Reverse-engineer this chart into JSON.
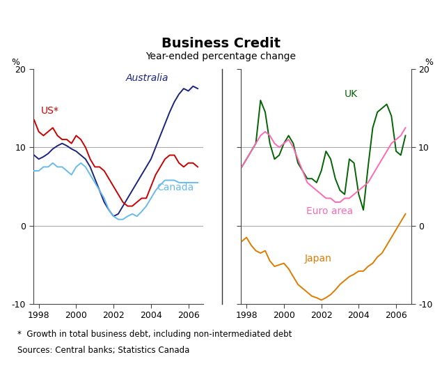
{
  "title": "Business Credit",
  "subtitle": "Year-ended percentage change",
  "footnote1": "*  Growth in total business debt, including non-intermediated debt",
  "footnote2": "Sources: Central banks; Statistics Canada",
  "ylim": [
    -10,
    20
  ],
  "yticks": [
    -10,
    0,
    10,
    20
  ],
  "left_xlim": [
    1997.7,
    2006.8
  ],
  "right_xlim": [
    1997.7,
    2006.8
  ],
  "xticks": [
    1998,
    2000,
    2002,
    2004,
    2006
  ],
  "xtick_labels": [
    "1998",
    "2000",
    "2002",
    "2004",
    "2006"
  ],
  "australia_color": "#1a237e",
  "us_color": "#cc0000",
  "canada_color": "#66bbee",
  "uk_color": "#006400",
  "euro_color": "#ff69b4",
  "japan_color": "#e07b00",
  "grid_color": "#aaaaaa",
  "background_color": "#ffffff",
  "australia": {
    "x": [
      1997.75,
      1998.0,
      1998.25,
      1998.5,
      1998.75,
      1999.0,
      1999.25,
      1999.5,
      1999.75,
      2000.0,
      2000.25,
      2000.5,
      2000.75,
      2001.0,
      2001.25,
      2001.5,
      2001.75,
      2002.0,
      2002.25,
      2002.5,
      2002.75,
      2003.0,
      2003.25,
      2003.5,
      2003.75,
      2004.0,
      2004.25,
      2004.5,
      2004.75,
      2005.0,
      2005.25,
      2005.5,
      2005.75,
      2006.0,
      2006.25,
      2006.5
    ],
    "y": [
      9.0,
      8.5,
      8.8,
      9.2,
      9.8,
      10.2,
      10.5,
      10.2,
      9.8,
      9.5,
      9.0,
      8.5,
      7.5,
      6.0,
      4.5,
      3.0,
      2.0,
      1.2,
      1.5,
      2.5,
      3.5,
      4.5,
      5.5,
      6.5,
      7.5,
      8.5,
      10.0,
      11.5,
      13.0,
      14.5,
      15.8,
      16.8,
      17.5,
      17.2,
      17.8,
      17.5
    ]
  },
  "us": {
    "x": [
      1997.75,
      1998.0,
      1998.25,
      1998.5,
      1998.75,
      1999.0,
      1999.25,
      1999.5,
      1999.75,
      2000.0,
      2000.25,
      2000.5,
      2000.75,
      2001.0,
      2001.25,
      2001.5,
      2001.75,
      2002.0,
      2002.25,
      2002.5,
      2002.75,
      2003.0,
      2003.25,
      2003.5,
      2003.75,
      2004.0,
      2004.25,
      2004.5,
      2004.75,
      2005.0,
      2005.25,
      2005.5,
      2005.75,
      2006.0,
      2006.25,
      2006.5
    ],
    "y": [
      13.5,
      12.0,
      11.5,
      12.0,
      12.5,
      11.5,
      11.0,
      11.0,
      10.5,
      11.5,
      11.0,
      10.0,
      8.5,
      7.5,
      7.5,
      7.0,
      6.0,
      5.0,
      4.0,
      3.0,
      2.5,
      2.5,
      3.0,
      3.5,
      3.5,
      5.0,
      6.5,
      7.5,
      8.5,
      9.0,
      9.0,
      8.0,
      7.5,
      8.0,
      8.0,
      7.5
    ]
  },
  "canada": {
    "x": [
      1997.75,
      1998.0,
      1998.25,
      1998.5,
      1998.75,
      1999.0,
      1999.25,
      1999.5,
      1999.75,
      2000.0,
      2000.25,
      2000.5,
      2000.75,
      2001.0,
      2001.25,
      2001.5,
      2001.75,
      2002.0,
      2002.25,
      2002.5,
      2002.75,
      2003.0,
      2003.25,
      2003.5,
      2003.75,
      2004.0,
      2004.25,
      2004.5,
      2004.75,
      2005.0,
      2005.25,
      2005.5,
      2005.75,
      2006.0,
      2006.25,
      2006.5
    ],
    "y": [
      7.0,
      7.0,
      7.5,
      7.5,
      8.0,
      7.5,
      7.5,
      7.0,
      6.5,
      7.5,
      8.0,
      7.5,
      6.5,
      5.5,
      4.5,
      3.5,
      2.0,
      1.2,
      0.8,
      0.8,
      1.2,
      1.5,
      1.2,
      1.8,
      2.5,
      3.5,
      4.5,
      5.2,
      5.8,
      5.8,
      5.8,
      5.5,
      5.5,
      5.5,
      5.5,
      5.5
    ]
  },
  "uk": {
    "x": [
      1997.75,
      1998.0,
      1998.25,
      1998.5,
      1998.75,
      1999.0,
      1999.25,
      1999.5,
      1999.75,
      2000.0,
      2000.25,
      2000.5,
      2000.75,
      2001.0,
      2001.25,
      2001.5,
      2001.75,
      2002.0,
      2002.25,
      2002.5,
      2002.75,
      2003.0,
      2003.25,
      2003.5,
      2003.75,
      2004.0,
      2004.25,
      2004.5,
      2004.75,
      2005.0,
      2005.25,
      2005.5,
      2005.75,
      2006.0,
      2006.25,
      2006.5
    ],
    "y": [
      7.5,
      8.5,
      9.5,
      10.5,
      16.0,
      14.5,
      10.5,
      8.5,
      9.0,
      10.5,
      11.5,
      10.5,
      8.0,
      7.0,
      6.0,
      6.0,
      5.5,
      7.0,
      9.5,
      8.5,
      6.0,
      4.5,
      4.0,
      8.5,
      8.0,
      4.0,
      2.0,
      7.5,
      12.5,
      14.5,
      15.0,
      15.5,
      14.0,
      9.5,
      9.0,
      11.5
    ]
  },
  "euro": {
    "x": [
      1997.75,
      1998.0,
      1998.25,
      1998.5,
      1998.75,
      1999.0,
      1999.25,
      1999.5,
      1999.75,
      2000.0,
      2000.25,
      2000.5,
      2000.75,
      2001.0,
      2001.25,
      2001.5,
      2001.75,
      2002.0,
      2002.25,
      2002.5,
      2002.75,
      2003.0,
      2003.25,
      2003.5,
      2003.75,
      2004.0,
      2004.25,
      2004.5,
      2004.75,
      2005.0,
      2005.25,
      2005.5,
      2005.75,
      2006.0,
      2006.25,
      2006.5
    ],
    "y": [
      7.5,
      8.5,
      9.5,
      10.5,
      11.5,
      12.0,
      11.5,
      10.5,
      10.0,
      10.5,
      11.0,
      10.0,
      8.5,
      7.0,
      5.5,
      5.0,
      4.5,
      4.0,
      3.5,
      3.5,
      3.0,
      3.0,
      3.5,
      3.5,
      4.0,
      4.5,
      5.0,
      5.5,
      6.5,
      7.5,
      8.5,
      9.5,
      10.5,
      11.0,
      11.5,
      12.5
    ]
  },
  "japan": {
    "x": [
      1997.75,
      1998.0,
      1998.25,
      1998.5,
      1998.75,
      1999.0,
      1999.25,
      1999.5,
      1999.75,
      2000.0,
      2000.25,
      2000.5,
      2000.75,
      2001.0,
      2001.25,
      2001.5,
      2001.75,
      2002.0,
      2002.25,
      2002.5,
      2002.75,
      2003.0,
      2003.25,
      2003.5,
      2003.75,
      2004.0,
      2004.25,
      2004.5,
      2004.75,
      2005.0,
      2005.25,
      2005.5,
      2005.75,
      2006.0,
      2006.25,
      2006.5
    ],
    "y": [
      -2.0,
      -1.5,
      -2.5,
      -3.2,
      -3.5,
      -3.2,
      -4.5,
      -5.2,
      -5.0,
      -4.8,
      -5.5,
      -6.5,
      -7.5,
      -8.0,
      -8.5,
      -9.0,
      -9.2,
      -9.5,
      -9.2,
      -8.8,
      -8.2,
      -7.5,
      -7.0,
      -6.5,
      -6.2,
      -5.8,
      -5.8,
      -5.2,
      -4.8,
      -4.0,
      -3.5,
      -2.5,
      -1.5,
      -0.5,
      0.5,
      1.5
    ]
  }
}
